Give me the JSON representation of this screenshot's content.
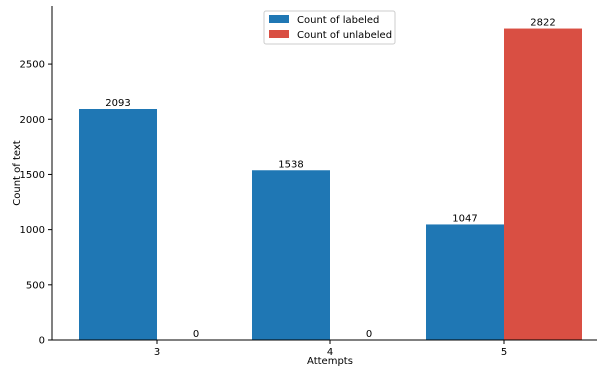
{
  "chart_data": {
    "type": "bar",
    "xlabel": "Attempts",
    "ylabel": "Count of text",
    "categories": [
      "3",
      "4",
      "5"
    ],
    "series": [
      {
        "name": "Count of labeled",
        "color": "#1f77b4",
        "values": [
          2093,
          1538,
          1047
        ]
      },
      {
        "name": "Count of unlabeled",
        "color": "#d94f43",
        "values": [
          0,
          0,
          2822
        ]
      }
    ],
    "ylim": [
      0,
      2900
    ],
    "yticks": [
      0,
      500,
      1000,
      1500,
      2000,
      2500
    ],
    "grid": false,
    "legend_position": "top-center"
  }
}
